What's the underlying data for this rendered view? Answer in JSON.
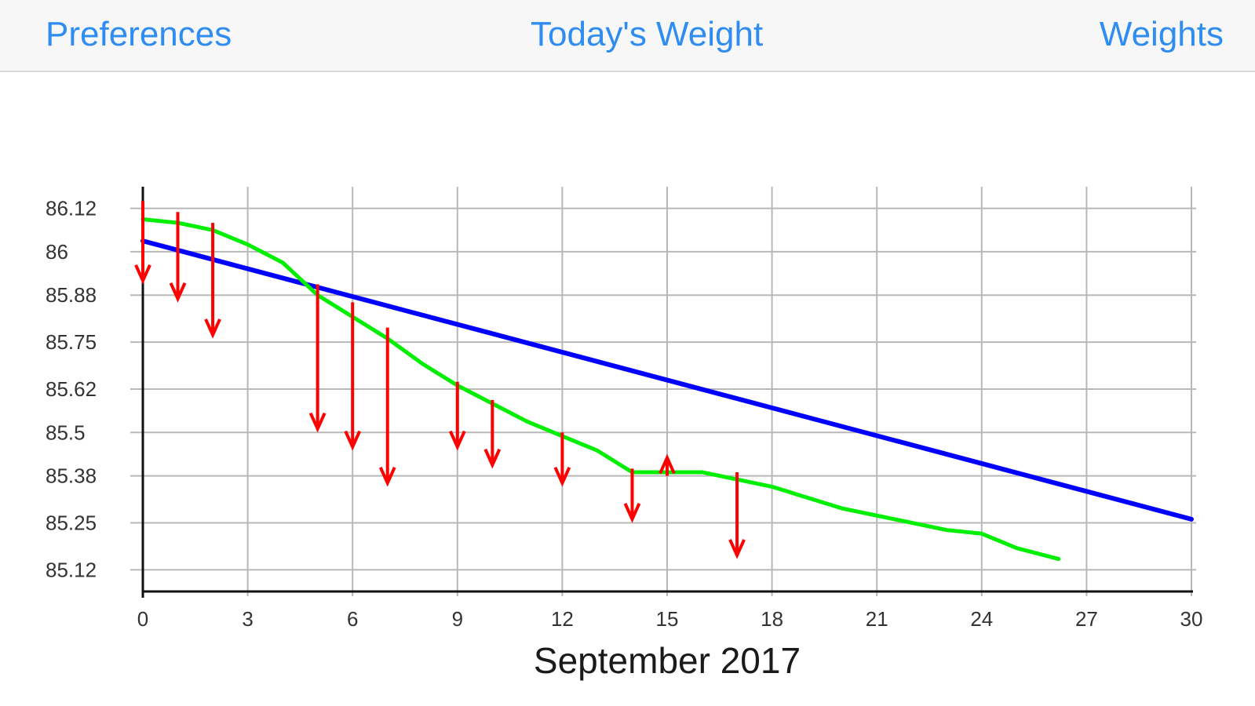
{
  "navbar": {
    "left_label": "Preferences",
    "center_label": "Today's Weight",
    "right_label": "Weights",
    "tint_color": "#2f8cf0"
  },
  "chart_data": {
    "type": "line",
    "title": "",
    "xlabel": "September 2017",
    "ylabel": "",
    "xlim": [
      0,
      30
    ],
    "ylim": [
      85.06,
      86.18
    ],
    "x_ticks": [
      0,
      3,
      6,
      9,
      12,
      15,
      18,
      21,
      24,
      27,
      30
    ],
    "y_ticks": [
      "86.12",
      "86",
      "85.88",
      "85.75",
      "85.62",
      "85.5",
      "85.38",
      "85.25",
      "85.12"
    ],
    "grid": true,
    "colors": {
      "trend": "#0000ff",
      "average": "#00ee00",
      "changes": "#ff0000"
    },
    "series": [
      {
        "x": [
          0,
          30
        ],
        "y": [
          86.03,
          85.26
        ]
      },
      {
        "x": [
          0,
          1,
          2,
          3,
          4,
          5,
          6,
          7,
          8,
          9,
          10,
          11,
          12,
          13,
          14,
          15,
          16,
          17,
          18,
          19,
          20,
          21,
          22,
          23,
          24,
          25,
          26.2
        ],
        "y": [
          86.09,
          86.08,
          86.06,
          86.02,
          85.97,
          85.88,
          85.82,
          85.76,
          85.69,
          85.63,
          85.58,
          85.53,
          85.49,
          85.45,
          85.39,
          85.39,
          85.39,
          85.37,
          85.35,
          85.32,
          85.29,
          85.27,
          85.25,
          85.23,
          85.22,
          85.18,
          85.15
        ]
      }
    ],
    "arrows": [
      {
        "day": 0,
        "from": 86.14,
        "to": 85.92
      },
      {
        "day": 1,
        "from": 86.11,
        "to": 85.87
      },
      {
        "day": 2,
        "from": 86.08,
        "to": 85.77
      },
      {
        "day": 5,
        "from": 85.91,
        "to": 85.51
      },
      {
        "day": 6,
        "from": 85.86,
        "to": 85.46
      },
      {
        "day": 7,
        "from": 85.79,
        "to": 85.36
      },
      {
        "day": 9,
        "from": 85.64,
        "to": 85.46
      },
      {
        "day": 10,
        "from": 85.59,
        "to": 85.41
      },
      {
        "day": 12,
        "from": 85.5,
        "to": 85.36
      },
      {
        "day": 14,
        "from": 85.4,
        "to": 85.26
      },
      {
        "day": 15,
        "from": 85.38,
        "to": 85.43
      },
      {
        "day": 17,
        "from": 85.39,
        "to": 85.16
      }
    ]
  }
}
